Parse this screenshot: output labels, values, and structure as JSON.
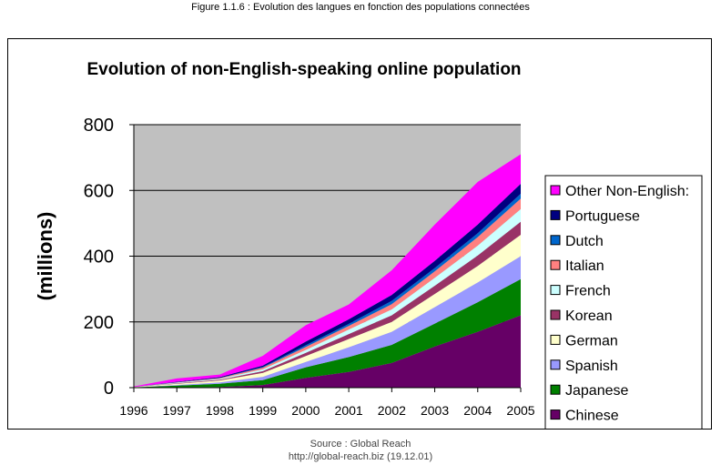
{
  "figure_caption": "Figure 1.1.6 : Evolution des langues en fonction des populations connectées",
  "source": {
    "line1": "Source : Global Reach",
    "line2": "http://global-reach.biz (19.12.01)"
  },
  "chart_data": {
    "type": "area",
    "stacked": true,
    "title": "Evolution of non-English-speaking online population",
    "xlabel": "",
    "ylabel": "(millions)",
    "ylim": [
      0,
      800
    ],
    "yticks": [
      "0",
      "200",
      "400",
      "600",
      "800"
    ],
    "categories": [
      "1996",
      "1997",
      "1998",
      "1999",
      "2000",
      "2001",
      "2002",
      "2003",
      "2004",
      "2005"
    ],
    "grid": true,
    "plot_background": "#c0c0c0",
    "legend_position": "right",
    "series": [
      {
        "name": "Chinese",
        "color": "#660066",
        "values": [
          0,
          1,
          2,
          8,
          30,
          48,
          75,
          125,
          170,
          220
        ]
      },
      {
        "name": "Japanese",
        "color": "#008000",
        "values": [
          1,
          5,
          10,
          15,
          32,
          45,
          55,
          70,
          90,
          110
        ]
      },
      {
        "name": "Spanish",
        "color": "#9999ff",
        "values": [
          0,
          2,
          4,
          10,
          16,
          30,
          40,
          50,
          60,
          70
        ]
      },
      {
        "name": "German",
        "color": "#ffffcc",
        "values": [
          1,
          4,
          6,
          12,
          18,
          25,
          30,
          40,
          50,
          65
        ]
      },
      {
        "name": "Korean",
        "color": "#993366",
        "values": [
          0,
          1,
          2,
          5,
          10,
          15,
          20,
          25,
          32,
          40
        ]
      },
      {
        "name": "French",
        "color": "#ccffff",
        "values": [
          0,
          2,
          3,
          6,
          9,
          14,
          18,
          24,
          30,
          38
        ]
      },
      {
        "name": "Italian",
        "color": "#ff8080",
        "values": [
          0,
          1,
          2,
          5,
          9,
          11,
          16,
          20,
          26,
          32
        ]
      },
      {
        "name": "Dutch",
        "color": "#0066cc",
        "values": [
          0,
          1,
          1,
          2,
          5,
          6,
          10,
          10,
          12,
          15
        ]
      },
      {
        "name": "Portuguese",
        "color": "#000080",
        "values": [
          0,
          1,
          2,
          4,
          11,
          14,
          18,
          22,
          26,
          30
        ]
      },
      {
        "name": "Other Non-English:",
        "color": "#ff00ff",
        "values": [
          2,
          10,
          8,
          30,
          50,
          45,
          75,
          110,
          130,
          90
        ]
      }
    ]
  }
}
